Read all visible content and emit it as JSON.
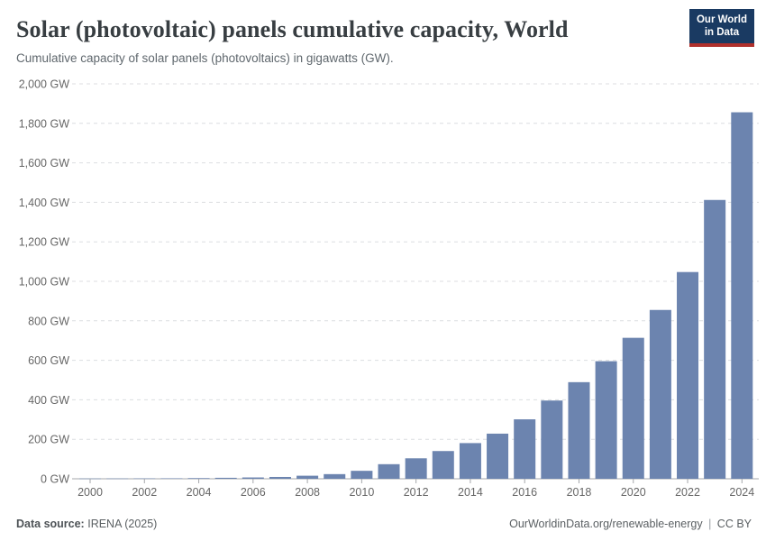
{
  "header": {
    "title": "Solar (photovoltaic) panels cumulative capacity, World",
    "subtitle": "Cumulative capacity of solar panels (photovoltaics) in gigawatts (GW).",
    "logo": {
      "line1": "Our World",
      "line2": "in Data"
    }
  },
  "chart_data": {
    "type": "bar",
    "title": "Solar (photovoltaic) panels cumulative capacity, World",
    "ylabel": "",
    "xlabel": "",
    "unit": "GW",
    "categories": [
      2000,
      2001,
      2002,
      2003,
      2004,
      2005,
      2006,
      2007,
      2008,
      2009,
      2010,
      2011,
      2012,
      2013,
      2014,
      2015,
      2016,
      2017,
      2018,
      2019,
      2020,
      2021,
      2022,
      2023,
      2024
    ],
    "values": [
      1.2,
      1.5,
      1.9,
      2.4,
      3.4,
      5.0,
      6.7,
      9.2,
      15.5,
      23.6,
      40.3,
      73.9,
      103.7,
      140.5,
      180.8,
      228.6,
      301.1,
      396.3,
      489.3,
      595.4,
      713.9,
      855.0,
      1047.0,
      1412.0,
      1856.0
    ],
    "ylim": [
      0,
      2000
    ],
    "ytick_interval": 200,
    "ytick_suffix": " GW",
    "xtick_interval": 2,
    "grid": true,
    "legend_position": "none"
  },
  "colors": {
    "bar": "#6c84af",
    "axis": "#a5a7ab",
    "gridline": "#dcdee1",
    "tick_label": "#666666",
    "logo_bg": "#1a3a62",
    "logo_accent": "#b0302c"
  },
  "footer": {
    "source_label": "Data source:",
    "source_value": "IRENA (2025)",
    "url": "OurWorldinData.org/renewable-energy",
    "separator": "|",
    "license": "CC BY"
  }
}
